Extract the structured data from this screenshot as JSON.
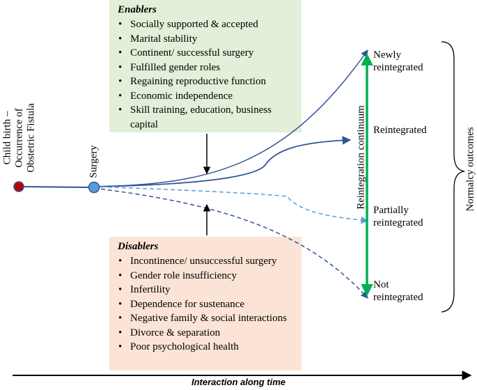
{
  "enablers": {
    "title": "Enablers",
    "items": [
      "Socially supported & accepted",
      "Marital stability",
      "Continent/ successful surgery",
      "Fulfilled gender roles",
      "Regaining reproductive function",
      "Economic independence",
      "Skill training, education, business capital"
    ]
  },
  "disablers": {
    "title": "Disablers",
    "items": [
      "Incontinence/ unsuccessful surgery",
      "Gender role insufficiency",
      "Infertility",
      "Dependence for sustenance",
      "Negative family & social interactions",
      "Divorce & separation",
      "Poor psychological health"
    ]
  },
  "start_label": "Child birth – Occurrence of Obstetric Fistula",
  "start_label_line1": "Child birth –",
  "start_label_line2": "Occurrence of",
  "start_label_line3": "Obstetric Fistula",
  "surgery_label": "Surgery",
  "continuum_label": "Reintegration continuum",
  "outcomes": {
    "newly": [
      "Newly",
      "reintegrated"
    ],
    "reintegrated": "Reintegrated",
    "partially": [
      "Partially",
      "reintegrated"
    ],
    "not": [
      "Not",
      "reintegrated"
    ]
  },
  "outcomes_label": "Normalcy outcomes",
  "timeline_label": "Interaction along time",
  "colors": {
    "enablers_bg": "#e2efd9",
    "disablers_bg": "#fbe4d5",
    "start_node": "#c00000",
    "surgery_node": "#5b9bd5",
    "dark_path": "#2f5496",
    "light_path": "#5b9bd5",
    "continuum": "#00b050"
  }
}
